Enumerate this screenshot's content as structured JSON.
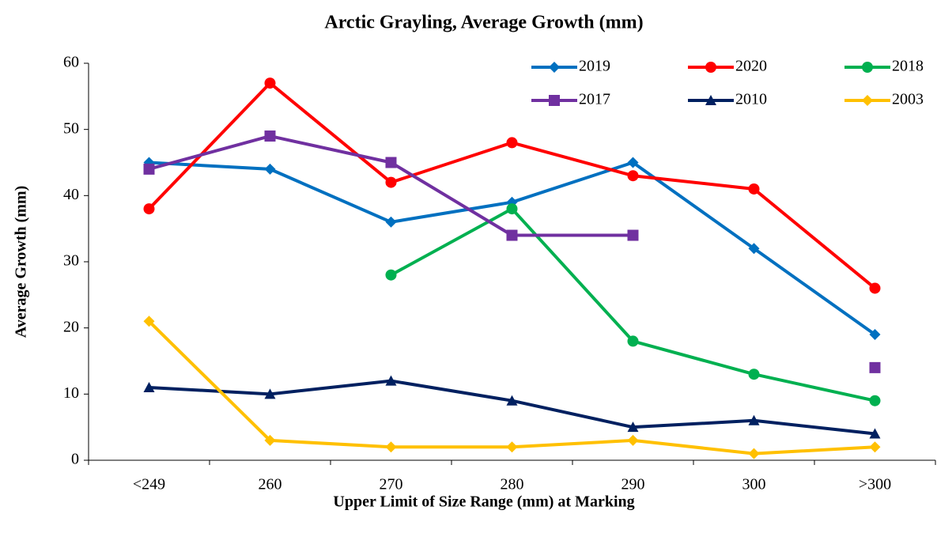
{
  "chart_data": {
    "type": "line",
    "title": "Arctic Grayling, Average Growth (mm)",
    "x_label": "Upper Limit of Size Range (mm) at Marking",
    "y_label": "Average Growth (mm)",
    "categories": [
      "<249",
      "260",
      "270",
      "280",
      "290",
      "300",
      ">300"
    ],
    "series": [
      {
        "name": "2019",
        "color": "#0070c0",
        "marker": "diamond",
        "values": [
          45,
          44,
          36,
          39,
          45,
          32,
          19
        ]
      },
      {
        "name": "2020",
        "color": "#ff0000",
        "marker": "circle",
        "values": [
          38,
          57,
          42,
          48,
          43,
          41,
          26
        ]
      },
      {
        "name": "2018",
        "color": "#00b050",
        "marker": "circle",
        "values": [
          null,
          null,
          28,
          38,
          18,
          13,
          9
        ]
      },
      {
        "name": "2017",
        "color": "#7030a0",
        "marker": "square",
        "values": [
          44,
          49,
          45,
          34,
          34,
          null,
          14
        ]
      },
      {
        "name": "2010",
        "color": "#002060",
        "marker": "triangle",
        "values": [
          11,
          10,
          12,
          9,
          5,
          6,
          4
        ]
      },
      {
        "name": "2003",
        "color": "#ffc000",
        "marker": "diamond",
        "values": [
          21,
          3,
          2,
          2,
          3,
          1,
          2
        ]
      }
    ],
    "ylim": [
      0,
      60
    ],
    "yticks": [
      0,
      10,
      20,
      30,
      40,
      50,
      60
    ],
    "grid": false,
    "legend": "top-right"
  }
}
